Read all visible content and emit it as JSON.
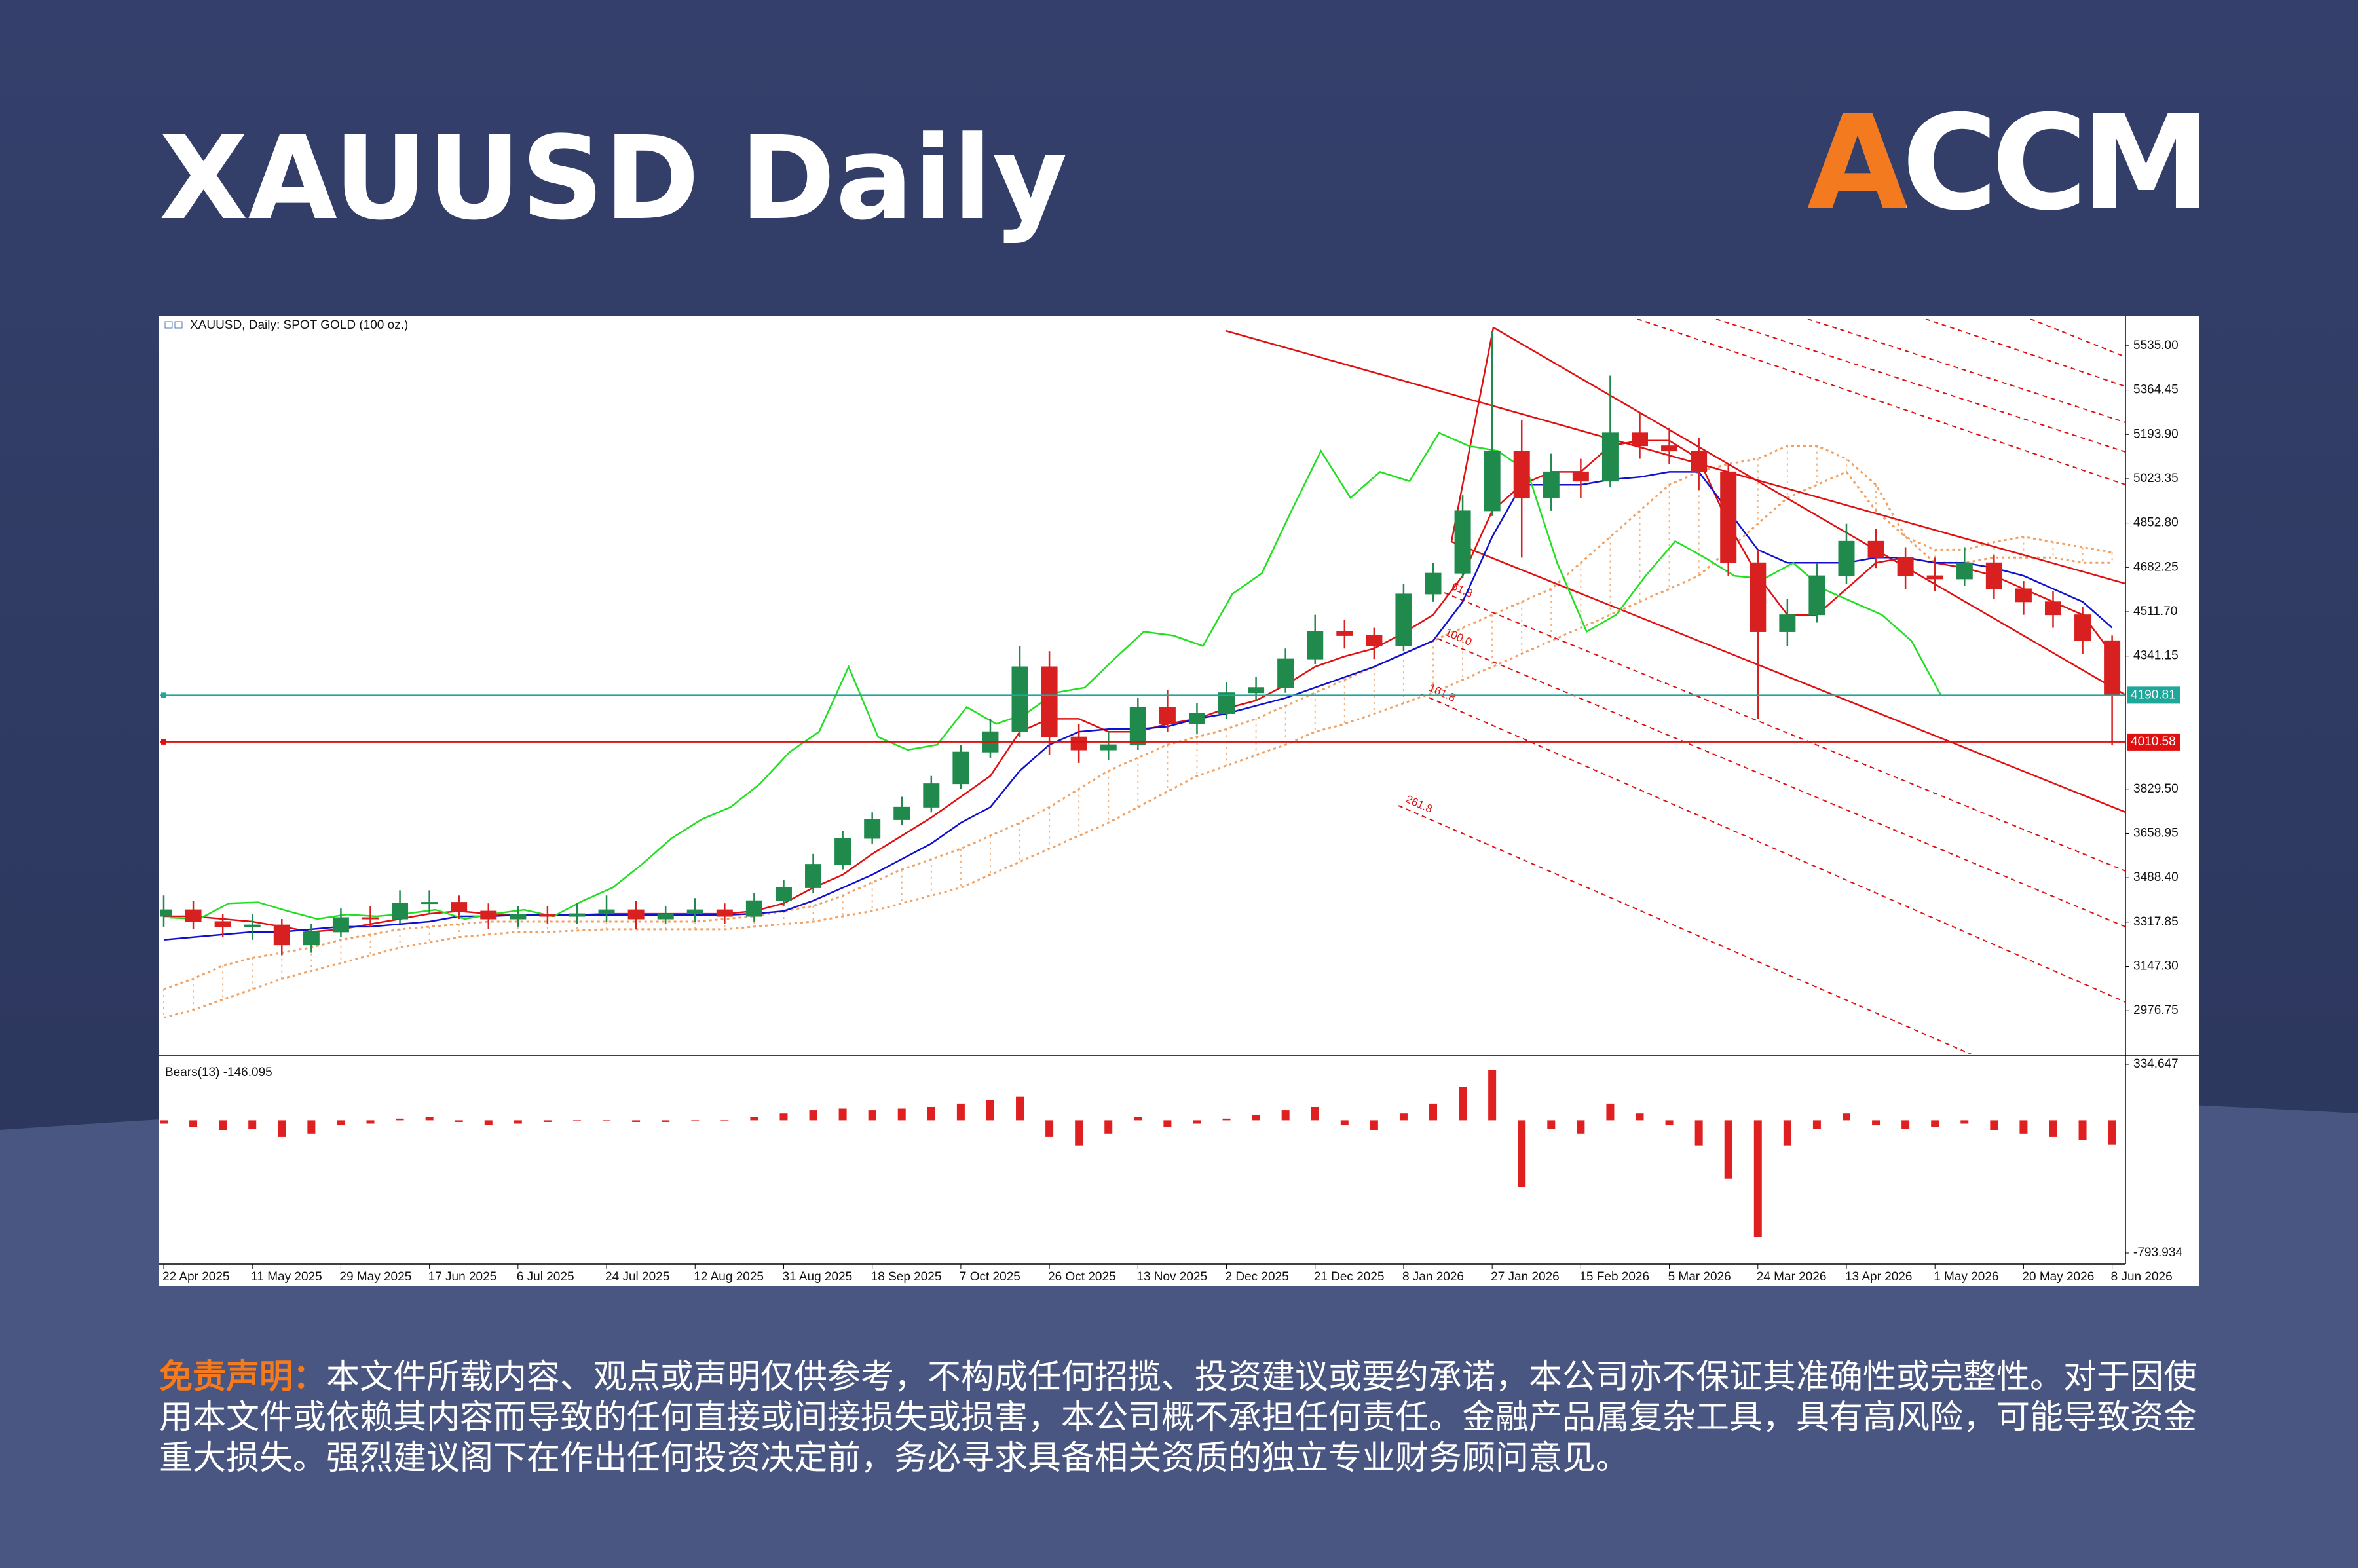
{
  "header": {
    "title": "XAUUSD Daily",
    "logo": "ACCM"
  },
  "chart_data": {
    "type": "candlestick",
    "title": "XAUUSD, Daily:  SPOT GOLD (100 oz.)",
    "categories": [
      "22 Apr 2025",
      null,
      null,
      "11 May 2025",
      null,
      null,
      "29 May 2025",
      null,
      null,
      "17 Jun 2025",
      null,
      null,
      "6 Jul 2025",
      null,
      null,
      "24 Jul 2025",
      null,
      null,
      "12 Aug 2025",
      null,
      null,
      "31 Aug 2025",
      null,
      null,
      "18 Sep 2025",
      null,
      null,
      "7 Oct 2025",
      null,
      null,
      "26 Oct 2025",
      null,
      null,
      "13 Nov 2025",
      null,
      null,
      "2 Dec 2025",
      null,
      null,
      "21 Dec 2025",
      null,
      null,
      "8 Jan 2026",
      null,
      null,
      "27 Jan 2026",
      null,
      null,
      "15 Feb 2026",
      null,
      null,
      "5 Mar 2026",
      null,
      null,
      "24 Mar 2026",
      null,
      null,
      "13 Apr 2026",
      null,
      null,
      "1 May 2026",
      null,
      null,
      "20 May 2026",
      null,
      null,
      "8 Jun 2026"
    ],
    "open": [
      3340,
      3365,
      3320,
      3300,
      3307,
      3230,
      3280,
      3335,
      3330,
      3390,
      3394,
      3360,
      3330,
      3347,
      3340,
      3350,
      3365,
      3330,
      3350,
      3365,
      3340,
      3400,
      3450,
      3540,
      3640,
      3712,
      3760,
      3850,
      3972,
      4050,
      4300,
      4030,
      3980,
      4000,
      4145,
      4080,
      4120,
      4200,
      4220,
      4330,
      4435,
      4420,
      4380,
      4580,
      4660,
      4900,
      5130,
      4950,
      5050,
      5014,
      5200,
      5150,
      5130,
      5050,
      4700,
      4435,
      4500,
      4650,
      4783,
      4720,
      4650,
      4638,
      4700,
      4600,
      4550,
      4500,
      4400
    ],
    "high": [
      3420,
      3400,
      3350,
      3350,
      3330,
      3310,
      3370,
      3380,
      3440,
      3440,
      3420,
      3390,
      3380,
      3380,
      3390,
      3420,
      3400,
      3380,
      3410,
      3390,
      3430,
      3480,
      3580,
      3670,
      3740,
      3800,
      3880,
      4000,
      4100,
      4380,
      4360,
      4080,
      4050,
      4180,
      4210,
      4160,
      4240,
      4260,
      4370,
      4500,
      4480,
      4450,
      4620,
      4700,
      4960,
      5590,
      5250,
      5120,
      5100,
      5420,
      5280,
      5220,
      5180,
      5080,
      4750,
      4560,
      4700,
      4850,
      4830,
      4760,
      4720,
      4760,
      4730,
      4630,
      4590,
      4530,
      4420
    ],
    "low": [
      3300,
      3290,
      3260,
      3250,
      3190,
      3200,
      3260,
      3300,
      3310,
      3350,
      3330,
      3290,
      3300,
      3310,
      3310,
      3320,
      3290,
      3310,
      3320,
      3310,
      3320,
      3380,
      3430,
      3520,
      3620,
      3690,
      3740,
      3830,
      3950,
      4030,
      3960,
      3930,
      3940,
      3980,
      4050,
      4040,
      4100,
      4170,
      4200,
      4310,
      4370,
      4330,
      4360,
      4550,
      4640,
      4880,
      4720,
      4900,
      4950,
      4990,
      5100,
      5080,
      4980,
      4650,
      4100,
      4380,
      4470,
      4620,
      4680,
      4600,
      4590,
      4610,
      4560,
      4500,
      4450,
      4350,
      4000
    ],
    "close": [
      3365,
      3320,
      3300,
      3307,
      3230,
      3280,
      3335,
      3330,
      3390,
      3394,
      3360,
      3330,
      3347,
      3340,
      3350,
      3365,
      3330,
      3350,
      3365,
      3340,
      3400,
      3450,
      3540,
      3640,
      3712,
      3760,
      3850,
      3972,
      4050,
      4300,
      4030,
      3980,
      4000,
      4145,
      4080,
      4120,
      4200,
      4220,
      4330,
      4435,
      4420,
      4380,
      4580,
      4660,
      4900,
      5130,
      4950,
      5050,
      5014,
      5200,
      5150,
      5130,
      5050,
      4700,
      4435,
      4500,
      4650,
      4783,
      4720,
      4650,
      4638,
      4700,
      4600,
      4550,
      4500,
      4400,
      4190.81
    ],
    "up_color": "#1f8a4c",
    "down_color": "#d82020",
    "lines": [
      {
        "color": "#e01010",
        "values": [
          3340,
          3340,
          3330,
          3320,
          3300,
          3280,
          3290,
          3310,
          3330,
          3350,
          3360,
          3350,
          3345,
          3345,
          3345,
          3350,
          3350,
          3350,
          3350,
          3350,
          3360,
          3390,
          3450,
          3500,
          3580,
          3650,
          3720,
          3800,
          3880,
          4050,
          4100,
          4100,
          4050,
          4050,
          4080,
          4100,
          4140,
          4170,
          4230,
          4300,
          4340,
          4370,
          4430,
          4500,
          4650,
          4900,
          5000,
          5050,
          5050,
          5150,
          5170,
          5170,
          5100,
          4850,
          4650,
          4500,
          4500,
          4600,
          4700,
          4720,
          4700,
          4680,
          4650,
          4600,
          4550,
          4500,
          4350
        ]
      },
      {
        "color": "#1010d0",
        "values": [
          3250,
          3260,
          3270,
          3280,
          3280,
          3290,
          3300,
          3300,
          3310,
          3320,
          3340,
          3340,
          3345,
          3345,
          3345,
          3345,
          3345,
          3345,
          3345,
          3345,
          3350,
          3360,
          3400,
          3450,
          3500,
          3560,
          3620,
          3700,
          3760,
          3900,
          4000,
          4050,
          4060,
          4060,
          4070,
          4100,
          4120,
          4150,
          4180,
          4220,
          4260,
          4300,
          4350,
          4400,
          4550,
          4800,
          5000,
          5000,
          5000,
          5020,
          5030,
          5050,
          5050,
          4900,
          4750,
          4700,
          4700,
          4700,
          4720,
          4720,
          4700,
          4700,
          4680,
          4650,
          4600,
          4550,
          4450
        ]
      }
    ],
    "chikou_color": "#20e020",
    "cloud": {
      "color": "#f0a060",
      "a": [
        3060,
        3100,
        3150,
        3180,
        3200,
        3220,
        3250,
        3270,
        3290,
        3300,
        3310,
        3320,
        3320,
        3320,
        3320,
        3320,
        3320,
        3320,
        3320,
        3330,
        3340,
        3360,
        3380,
        3420,
        3470,
        3520,
        3560,
        3600,
        3650,
        3700,
        3760,
        3830,
        3900,
        3950,
        4000,
        4030,
        4060,
        4100,
        4150,
        4200,
        4250,
        4300,
        4350,
        4400,
        4450,
        4500,
        4550,
        4600,
        4700,
        4800,
        4900,
        5000,
        5050,
        5080,
        5100,
        5150,
        5150,
        5100,
        5000,
        4800,
        4750,
        4750,
        4780,
        4800,
        4780,
        4760,
        4740
      ],
      "b": [
        2950,
        2980,
        3020,
        3060,
        3100,
        3130,
        3160,
        3190,
        3220,
        3240,
        3260,
        3270,
        3280,
        3280,
        3285,
        3290,
        3290,
        3290,
        3290,
        3290,
        3300,
        3310,
        3320,
        3340,
        3360,
        3390,
        3420,
        3450,
        3500,
        3550,
        3600,
        3650,
        3700,
        3760,
        3820,
        3880,
        3920,
        3960,
        4000,
        4050,
        4080,
        4120,
        4160,
        4200,
        4250,
        4300,
        4350,
        4400,
        4450,
        4500,
        4550,
        4600,
        4650,
        4750,
        4850,
        4950,
        5000,
        5050,
        4900,
        4800,
        4700,
        4700,
        4720,
        4720,
        4720,
        4700,
        4700
      ]
    },
    "hlines": [
      {
        "value": 4190.81,
        "color": "#1fa89a"
      },
      {
        "value": 4010.58,
        "color": "#e01010"
      }
    ],
    "fib_labels": [
      "61.8",
      "100.0",
      "161.8",
      "261.8"
    ],
    "ylim": [
      2816,
      5638
    ],
    "yticks": [
      {
        "value": 5535,
        "label": "5535.00"
      },
      {
        "value": 5364.45,
        "label": "5364.45"
      },
      {
        "value": 5193.9,
        "label": "5193.90"
      },
      {
        "value": 5023.35,
        "label": "5023.35"
      },
      {
        "value": 4852.8,
        "label": "4852.80"
      },
      {
        "value": 4682.25,
        "label": "4682.25"
      },
      {
        "value": 4511.7,
        "label": "4511.70"
      },
      {
        "value": 4341.15,
        "label": "4341.15"
      },
      {
        "value": 3829.5,
        "label": "3829.50"
      },
      {
        "value": 3658.95,
        "label": "3658.95"
      },
      {
        "value": 3488.4,
        "label": "3488.40"
      },
      {
        "value": 3317.85,
        "label": "3317.85"
      },
      {
        "value": 3147.3,
        "label": "3147.30"
      },
      {
        "value": 2976.75,
        "label": "2976.75"
      }
    ],
    "indicator": {
      "label": "Bears(13) -146.095",
      "color": "#e02020",
      "values": [
        -20,
        -40,
        -60,
        -50,
        -100,
        -80,
        -30,
        -20,
        10,
        20,
        -10,
        -30,
        -20,
        -10,
        -5,
        0,
        -10,
        -10,
        0,
        -5,
        20,
        40,
        60,
        70,
        60,
        70,
        80,
        100,
        120,
        140,
        -100,
        -150,
        -80,
        20,
        -40,
        -20,
        10,
        30,
        60,
        80,
        -30,
        -60,
        40,
        100,
        200,
        300,
        -400,
        -50,
        -80,
        100,
        40,
        -30,
        -150,
        -350,
        -700,
        -150,
        -50,
        40,
        -30,
        -50,
        -40,
        -20,
        -60,
        -80,
        -100,
        -120,
        -146.095
      ],
      "ylim": [
        -793.934,
        334.647
      ],
      "yticks": [
        334.647,
        -793.934
      ]
    }
  },
  "disclaimer": {
    "label": "免责声明：",
    "text": "本文件所载内容、观点或声明仅供参考，不构成任何招揽、投资建议或要约承诺，本公司亦不保证其准确性或完整性。对于因使用本文件或依赖其内容而导致的任何直接或间接损失或损害，本公司概不承担任何责任。金融产品属复杂工具，具有高风险，可能导致资金重大损失。强烈建议阁下在作出任何投资决定前，务必寻求具备相关资质的独立专业财务顾问意见。"
  }
}
